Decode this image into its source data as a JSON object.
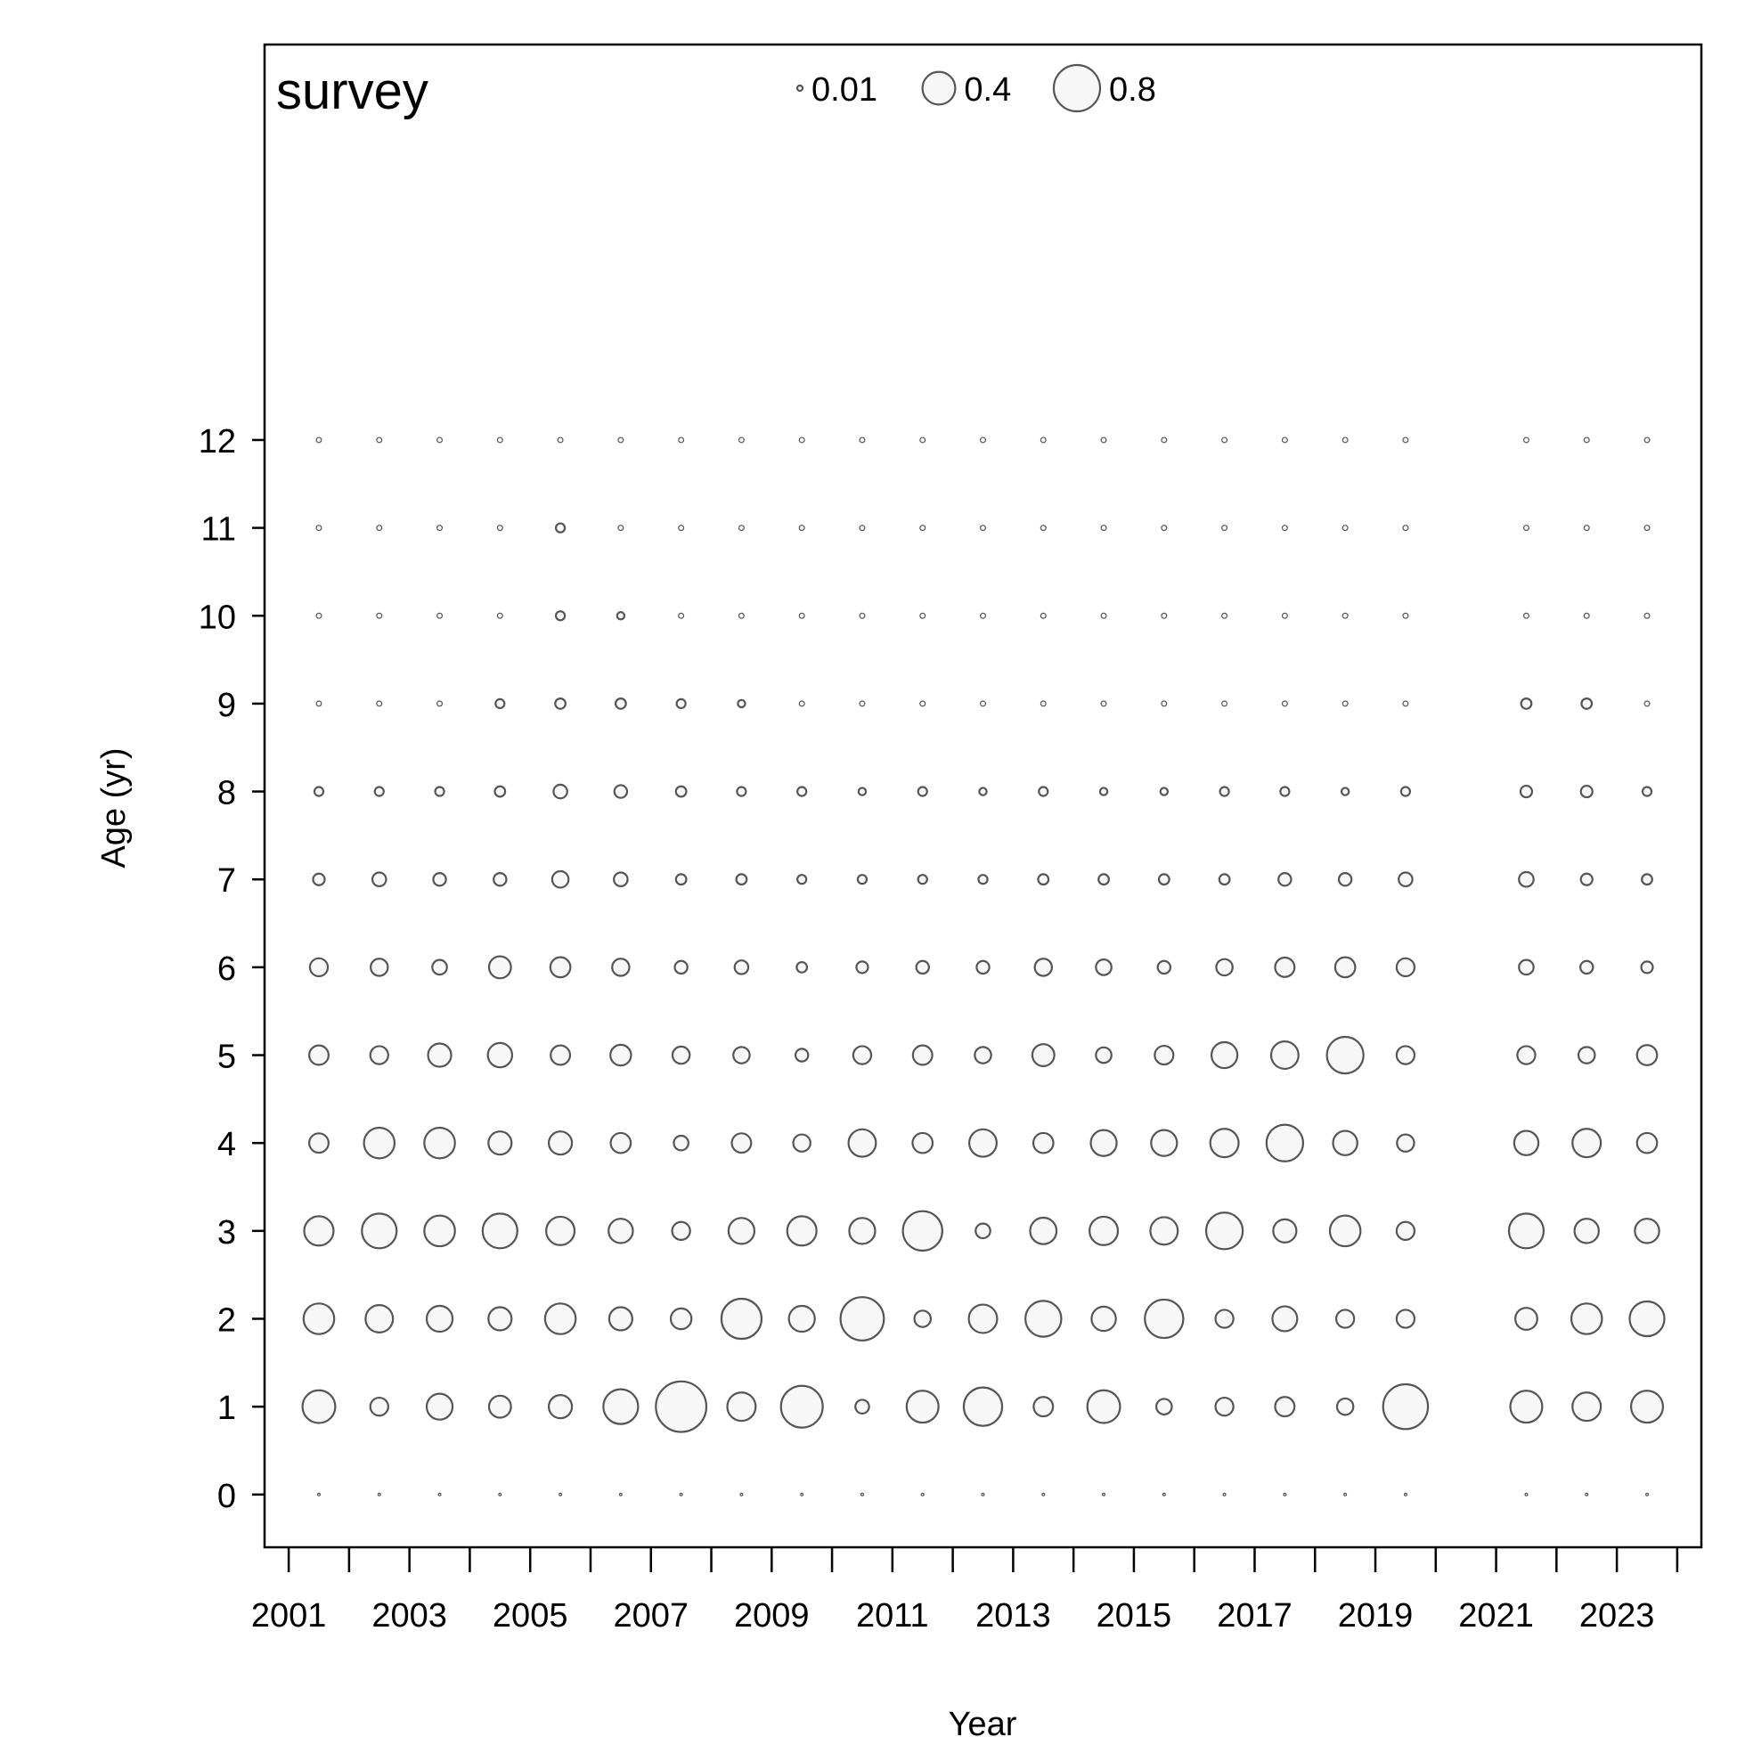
{
  "chart_data": {
    "type": "bubble",
    "title": "survey",
    "xlabel": "Year",
    "ylabel": "Age (yr)",
    "xlim": [
      2000.6,
      2024.4
    ],
    "ylim": [
      -0.6,
      16.5
    ],
    "x_ticks": [
      2001,
      2002,
      2003,
      2004,
      2005,
      2006,
      2007,
      2008,
      2009,
      2010,
      2011,
      2012,
      2013,
      2014,
      2015,
      2016,
      2017,
      2018,
      2019,
      2020,
      2021,
      2022,
      2023,
      2024
    ],
    "x_tick_labels": [
      "2001",
      "",
      "2003",
      "",
      "2005",
      "",
      "2007",
      "",
      "2009",
      "",
      "2011",
      "",
      "2013",
      "",
      "2015",
      "",
      "2017",
      "",
      "2019",
      "",
      "2021",
      "",
      "2023",
      ""
    ],
    "y_ticks": [
      0,
      1,
      2,
      3,
      4,
      5,
      6,
      7,
      8,
      9,
      10,
      11,
      12
    ],
    "y_tick_labels": [
      "0",
      "1",
      "2",
      "3",
      "4",
      "5",
      "6",
      "7",
      "8",
      "9",
      "10",
      "11",
      "12"
    ],
    "legend": {
      "position": "top-center",
      "values": [
        0.01,
        0.4,
        0.8
      ],
      "labels": [
        "0.01",
        "0.4",
        "0.8"
      ]
    },
    "grid": false,
    "colors": {
      "bubble_stroke": "#555555",
      "bubble_fill": "#f7f7f7",
      "axis": "#000000"
    },
    "years": [
      2001.5,
      2002.5,
      2003.5,
      2004.5,
      2005.5,
      2006.5,
      2007.5,
      2008.5,
      2009.5,
      2010.5,
      2011.5,
      2012.5,
      2013.5,
      2014.5,
      2015.5,
      2016.5,
      2017.5,
      2018.5,
      2019.5,
      2021.5,
      2022.5,
      2023.5
    ],
    "ages": [
      0,
      1,
      2,
      3,
      4,
      5,
      6,
      7,
      8,
      9,
      10,
      11,
      12
    ],
    "values": [
      [
        0.0,
        0.4,
        0.35,
        0.32,
        0.14,
        0.14,
        0.12,
        0.05,
        0.03,
        0.01,
        0.01,
        0.01,
        0.01
      ],
      [
        0.0,
        0.12,
        0.28,
        0.45,
        0.35,
        0.12,
        0.11,
        0.07,
        0.03,
        0.01,
        0.01,
        0.01,
        0.01
      ],
      [
        0.0,
        0.25,
        0.25,
        0.35,
        0.35,
        0.2,
        0.08,
        0.06,
        0.03,
        0.01,
        0.01,
        0.01,
        0.01
      ],
      [
        0.0,
        0.18,
        0.2,
        0.45,
        0.2,
        0.22,
        0.18,
        0.06,
        0.04,
        0.03,
        0.01,
        0.01,
        0.01
      ],
      [
        0.0,
        0.2,
        0.35,
        0.3,
        0.2,
        0.14,
        0.15,
        0.1,
        0.07,
        0.04,
        0.03,
        0.03,
        0.01
      ],
      [
        0.0,
        0.45,
        0.2,
        0.22,
        0.15,
        0.16,
        0.11,
        0.07,
        0.06,
        0.04,
        0.02,
        0.01,
        0.01
      ],
      [
        0.0,
        0.95,
        0.16,
        0.12,
        0.08,
        0.11,
        0.06,
        0.04,
        0.04,
        0.03,
        0.01,
        0.01,
        0.01
      ],
      [
        0.0,
        0.3,
        0.6,
        0.25,
        0.14,
        0.1,
        0.07,
        0.04,
        0.03,
        0.02,
        0.01,
        0.01,
        0.01
      ],
      [
        0.0,
        0.65,
        0.25,
        0.32,
        0.11,
        0.06,
        0.04,
        0.03,
        0.03,
        0.01,
        0.01,
        0.01,
        0.01
      ],
      [
        0.0,
        0.07,
        0.7,
        0.25,
        0.28,
        0.12,
        0.05,
        0.03,
        0.02,
        0.01,
        0.01,
        0.01,
        0.01
      ],
      [
        0.0,
        0.38,
        0.1,
        0.58,
        0.15,
        0.14,
        0.06,
        0.03,
        0.03,
        0.01,
        0.01,
        0.01,
        0.01
      ],
      [
        0.0,
        0.55,
        0.3,
        0.08,
        0.28,
        0.1,
        0.06,
        0.03,
        0.02,
        0.01,
        0.01,
        0.01,
        0.01
      ],
      [
        0.0,
        0.14,
        0.48,
        0.26,
        0.15,
        0.18,
        0.11,
        0.04,
        0.03,
        0.01,
        0.01,
        0.01,
        0.01
      ],
      [
        0.0,
        0.4,
        0.22,
        0.3,
        0.25,
        0.09,
        0.09,
        0.04,
        0.02,
        0.01,
        0.01,
        0.01,
        0.01
      ],
      [
        0.0,
        0.09,
        0.55,
        0.28,
        0.25,
        0.13,
        0.06,
        0.04,
        0.02,
        0.01,
        0.01,
        0.01,
        0.01
      ],
      [
        0.0,
        0.12,
        0.12,
        0.5,
        0.3,
        0.25,
        0.1,
        0.04,
        0.03,
        0.01,
        0.01,
        0.01,
        0.01
      ],
      [
        0.0,
        0.14,
        0.23,
        0.2,
        0.5,
        0.28,
        0.14,
        0.06,
        0.03,
        0.01,
        0.01,
        0.01,
        0.01
      ],
      [
        0.0,
        0.1,
        0.12,
        0.35,
        0.22,
        0.5,
        0.15,
        0.06,
        0.02,
        0.01,
        0.01,
        0.01,
        0.01
      ],
      [
        0.0,
        0.75,
        0.12,
        0.12,
        0.11,
        0.12,
        0.12,
        0.07,
        0.03,
        0.01,
        0.01,
        0.01,
        0.01
      ],
      [
        0.0,
        0.38,
        0.18,
        0.45,
        0.22,
        0.12,
        0.08,
        0.08,
        0.05,
        0.04,
        0.01,
        0.01,
        0.01
      ],
      [
        0.0,
        0.3,
        0.35,
        0.22,
        0.3,
        0.1,
        0.06,
        0.05,
        0.05,
        0.04,
        0.01,
        0.01,
        0.01
      ],
      [
        0.0,
        0.38,
        0.45,
        0.22,
        0.15,
        0.15,
        0.05,
        0.04,
        0.03,
        0.01,
        0.01,
        0.01,
        0.01
      ]
    ]
  }
}
